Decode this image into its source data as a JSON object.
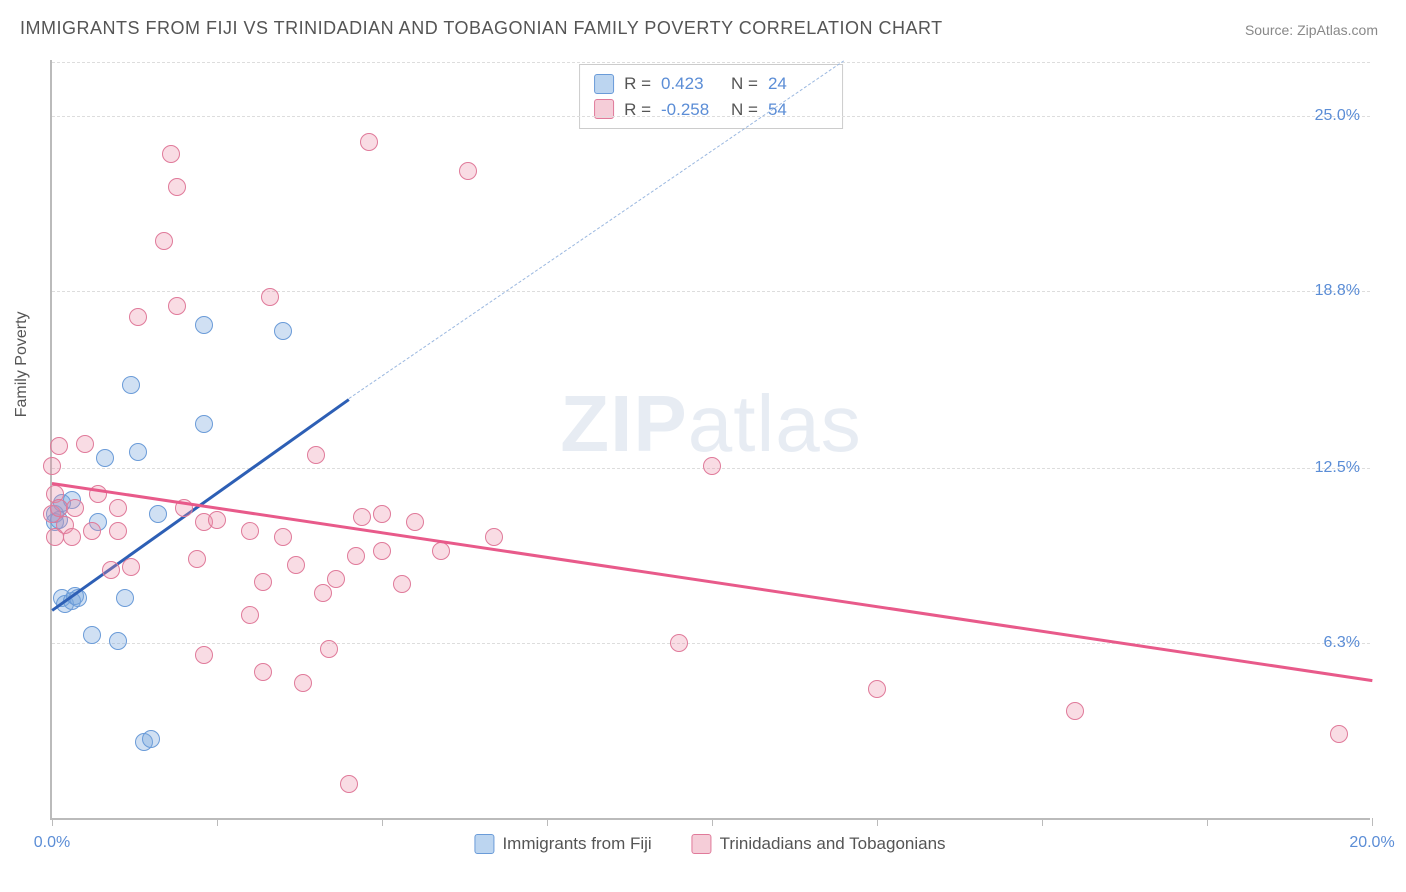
{
  "title": "IMMIGRANTS FROM FIJI VS TRINIDADIAN AND TOBAGONIAN FAMILY POVERTY CORRELATION CHART",
  "source": "Source: ZipAtlas.com",
  "watermark": {
    "bold": "ZIP",
    "rest": "atlas"
  },
  "ylabel": "Family Poverty",
  "chart": {
    "type": "scatter",
    "xlim": [
      0,
      20
    ],
    "ylim": [
      0,
      27
    ],
    "xtick_positions": [
      0,
      2.5,
      5,
      7.5,
      10,
      12.5,
      15,
      17.5,
      20
    ],
    "xtick_labels": {
      "0": "0.0%",
      "20": "20.0%"
    },
    "ytick_positions": [
      6.3,
      12.5,
      18.8,
      25.0
    ],
    "ytick_labels": [
      "6.3%",
      "12.5%",
      "18.8%",
      "25.0%"
    ],
    "grid_color": "#dddddd",
    "axis_color": "#bbbbbb",
    "background_color": "#ffffff",
    "tick_label_color": "#5b8dd6",
    "series": [
      {
        "name": "Immigrants from Fiji",
        "color_fill": "rgba(120,165,220,0.35)",
        "color_stroke": "#6a9bd8",
        "swatch_fill": "#bcd5f0",
        "swatch_stroke": "#6a9bd8",
        "r": 0.423,
        "n": 24,
        "trend": {
          "x1": 0,
          "y1": 7.5,
          "x2": 4.5,
          "y2": 15.0,
          "color": "#2d5fb5",
          "width": 2.5
        },
        "trend_dashed": {
          "x1": 4.5,
          "y1": 15.0,
          "x2": 12.0,
          "y2": 27.0,
          "color": "#9bb8e0"
        },
        "points": [
          [
            0.05,
            10.8
          ],
          [
            0.05,
            10.5
          ],
          [
            0.1,
            11.0
          ],
          [
            0.1,
            10.6
          ],
          [
            0.15,
            11.2
          ],
          [
            0.15,
            7.8
          ],
          [
            0.2,
            7.6
          ],
          [
            0.3,
            7.7
          ],
          [
            0.3,
            11.3
          ],
          [
            0.35,
            7.9
          ],
          [
            0.4,
            7.8
          ],
          [
            0.6,
            6.5
          ],
          [
            0.7,
            10.5
          ],
          [
            0.8,
            12.8
          ],
          [
            1.0,
            6.3
          ],
          [
            1.1,
            7.8
          ],
          [
            1.2,
            15.4
          ],
          [
            1.3,
            13.0
          ],
          [
            1.4,
            2.7
          ],
          [
            1.5,
            2.8
          ],
          [
            2.3,
            14.0
          ],
          [
            2.3,
            17.5
          ],
          [
            3.5,
            17.3
          ],
          [
            1.6,
            10.8
          ]
        ]
      },
      {
        "name": "Trinidadians and Tobagonians",
        "color_fill": "rgba(235,140,165,0.3)",
        "color_stroke": "#e07a9a",
        "swatch_fill": "#f5cdd8",
        "swatch_stroke": "#e07a9a",
        "r": -0.258,
        "n": 54,
        "trend": {
          "x1": 0,
          "y1": 12.0,
          "x2": 20,
          "y2": 5.0,
          "color": "#e85a8a",
          "width": 2.5
        },
        "points": [
          [
            0.0,
            12.5
          ],
          [
            0.0,
            10.8
          ],
          [
            0.05,
            11.5
          ],
          [
            0.05,
            10.0
          ],
          [
            0.1,
            11.0
          ],
          [
            0.1,
            13.2
          ],
          [
            0.2,
            10.4
          ],
          [
            0.3,
            10.0
          ],
          [
            0.35,
            11.0
          ],
          [
            0.5,
            13.3
          ],
          [
            0.6,
            10.2
          ],
          [
            0.7,
            11.5
          ],
          [
            0.9,
            8.8
          ],
          [
            1.0,
            11.0
          ],
          [
            1.0,
            10.2
          ],
          [
            1.2,
            8.9
          ],
          [
            1.3,
            17.8
          ],
          [
            1.7,
            20.5
          ],
          [
            1.8,
            23.6
          ],
          [
            1.9,
            18.2
          ],
          [
            1.9,
            22.4
          ],
          [
            2.0,
            11.0
          ],
          [
            2.2,
            9.2
          ],
          [
            2.3,
            10.5
          ],
          [
            2.3,
            5.8
          ],
          [
            2.5,
            10.6
          ],
          [
            3.0,
            7.2
          ],
          [
            3.2,
            5.2
          ],
          [
            3.2,
            8.4
          ],
          [
            3.3,
            18.5
          ],
          [
            3.5,
            10.0
          ],
          [
            3.7,
            9.0
          ],
          [
            3.8,
            4.8
          ],
          [
            4.0,
            12.9
          ],
          [
            4.1,
            8.0
          ],
          [
            4.2,
            6.0
          ],
          [
            4.3,
            8.5
          ],
          [
            4.5,
            1.2
          ],
          [
            4.6,
            9.3
          ],
          [
            4.7,
            10.7
          ],
          [
            4.8,
            24.0
          ],
          [
            5.0,
            10.8
          ],
          [
            5.0,
            9.5
          ],
          [
            5.3,
            8.3
          ],
          [
            5.5,
            10.5
          ],
          [
            5.9,
            9.5
          ],
          [
            6.3,
            23.0
          ],
          [
            6.7,
            10.0
          ],
          [
            9.5,
            6.2
          ],
          [
            10.0,
            12.5
          ],
          [
            12.5,
            4.6
          ],
          [
            15.5,
            3.8
          ],
          [
            19.5,
            3.0
          ],
          [
            3.0,
            10.2
          ]
        ]
      }
    ]
  },
  "bottom_legend": [
    {
      "label": "Immigrants from Fiji",
      "swatch_fill": "#bcd5f0",
      "swatch_stroke": "#6a9bd8"
    },
    {
      "label": "Trinidadians and Tobagonians",
      "swatch_fill": "#f5cdd8",
      "swatch_stroke": "#e07a9a"
    }
  ]
}
